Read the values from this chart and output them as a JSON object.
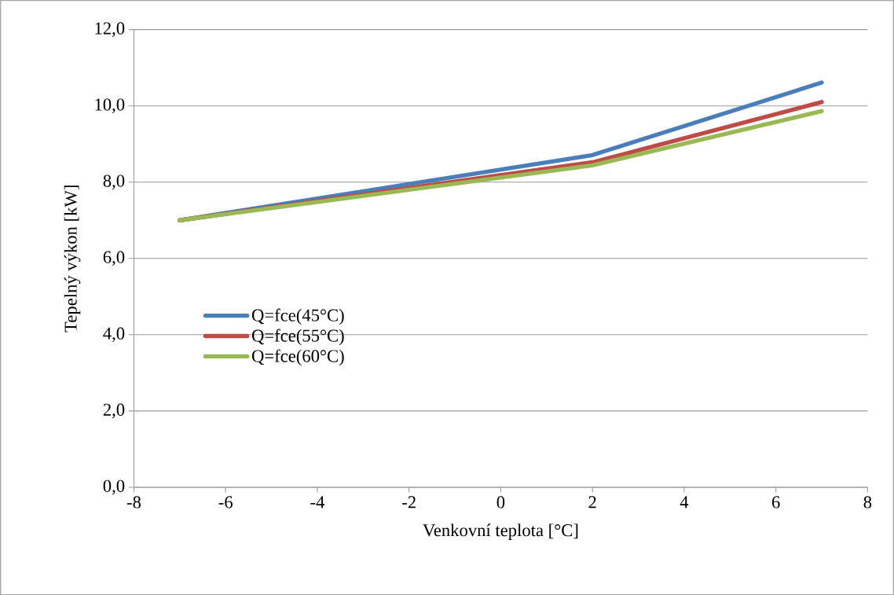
{
  "chart_data": {
    "type": "line",
    "xlabel": "Venkovní teplota [°C]",
    "ylabel": "Tepelný výkon [kW]",
    "x": [
      -7,
      2,
      7
    ],
    "series": [
      {
        "name": "Q=fce(45°C)",
        "color": "#4a7ebb",
        "values": [
          7.0,
          8.71,
          10.61
        ]
      },
      {
        "name": "Q=fce(55°C)",
        "color": "#be4b48",
        "values": [
          7.0,
          8.52,
          10.1
        ]
      },
      {
        "name": "Q=fce(60°C)",
        "color": "#98b954",
        "values": [
          7.0,
          8.44,
          9.86
        ]
      }
    ],
    "xlim": [
      -8,
      8
    ],
    "xticks": [
      -8,
      -6,
      -4,
      -2,
      0,
      2,
      4,
      6,
      8
    ],
    "ylim": [
      0,
      12
    ],
    "yticks": [
      {
        "value": 0,
        "label": "0,0"
      },
      {
        "value": 2,
        "label": "2,0"
      },
      {
        "value": 4,
        "label": "4,0"
      },
      {
        "value": 6,
        "label": "6,0"
      },
      {
        "value": 8,
        "label": "8,0"
      },
      {
        "value": 10,
        "label": "10,0"
      },
      {
        "value": 12,
        "label": "12,0"
      }
    ],
    "grid": "y",
    "legend": "left",
    "marker": "none",
    "line_style": "solid"
  }
}
